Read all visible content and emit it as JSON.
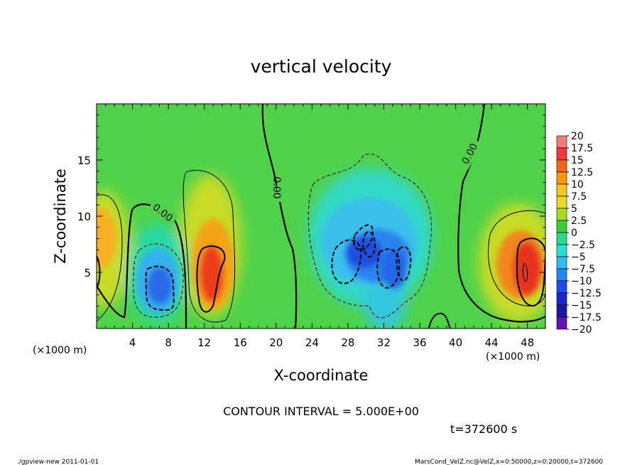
{
  "chart_data": {
    "type": "heatmap",
    "title": "vertical velocity",
    "xlabel": "X-coordinate",
    "ylabel": "Z-coordinate",
    "x_unit_label": "(×1000 m)",
    "y_unit_label": "(×1000 m)",
    "xlim": [
      0,
      50
    ],
    "ylim": [
      0,
      20
    ],
    "x_ticks": [
      4,
      8,
      12,
      16,
      20,
      24,
      28,
      32,
      36,
      40,
      44,
      48
    ],
    "y_ticks": [
      5,
      10,
      15
    ],
    "contour_interval_text": "CONTOUR INTERVAL = 5.000E+00",
    "time_text": "t=372600 s",
    "contour_labels": [
      "0.00",
      "0.00",
      "0.00"
    ],
    "colorbar": {
      "labels": [
        "20",
        "17.5",
        "15",
        "12.5",
        "10",
        "7.5",
        "5",
        "2.5",
        "0",
        "−2.5",
        "−5",
        "−7.5",
        "−10",
        "−12.5",
        "−15",
        "−17.5",
        "−20"
      ],
      "colors": [
        "#f4a0a0",
        "#f27a7a",
        "#ee3a3a",
        "#f0661e",
        "#f79a10",
        "#f8c424",
        "#e6dc2a",
        "#a8dc1e",
        "#3ccc3c",
        "#2cd68a",
        "#28e0d0",
        "#36b8f0",
        "#2a84ee",
        "#1e4cea",
        "#1a26d2",
        "#1e16a2",
        "#6016b0"
      ]
    },
    "features": [
      {
        "kind": "updraft",
        "x": 12.8,
        "z": 5.5,
        "peak": 15
      },
      {
        "kind": "updraft",
        "x": 47.5,
        "z": 5.8,
        "peak": 15
      },
      {
        "kind": "updraft",
        "x": 0.5,
        "z": 8.5,
        "peak": 10
      },
      {
        "kind": "downdraft",
        "x": 7.5,
        "z": 4.0,
        "peak": -12.5
      },
      {
        "kind": "downdraft",
        "x": 31.5,
        "z": 6.5,
        "peak": -15
      }
    ]
  },
  "footer": {
    "left": "./gpview-new  2011-01-01",
    "right": "MarsCond_VelZ.nc@VelZ,x=0:50000,z=0:20000,t=372600"
  }
}
